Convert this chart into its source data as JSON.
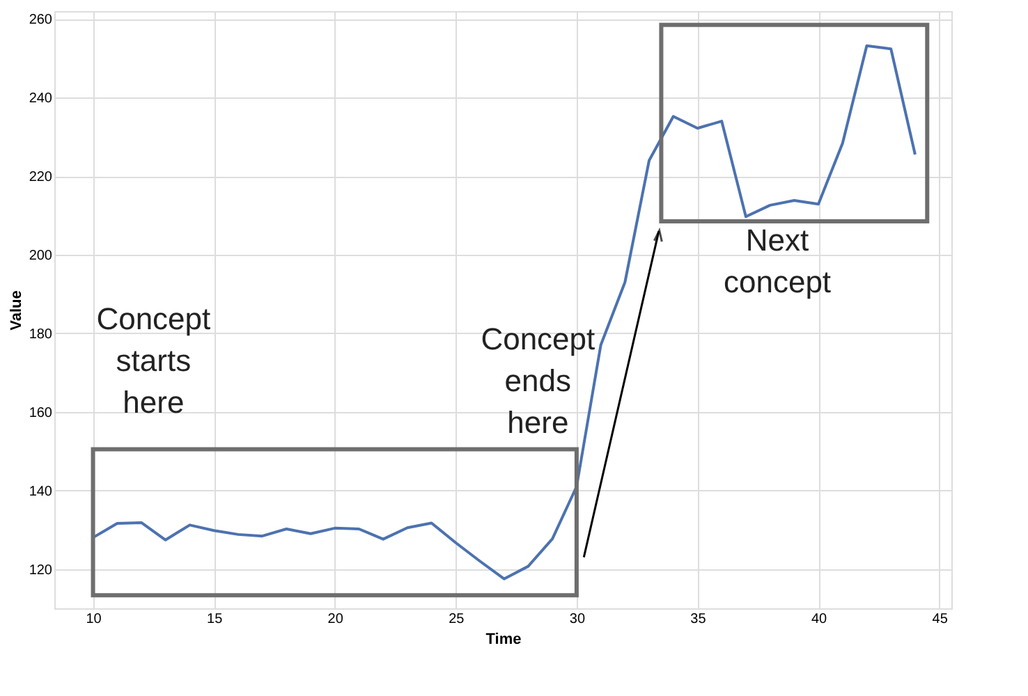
{
  "chart_data": {
    "type": "line",
    "xlabel": "Time",
    "ylabel": "Value",
    "x": [
      10,
      11,
      12,
      13,
      14,
      15,
      16,
      17,
      18,
      19,
      20,
      21,
      22,
      23,
      24,
      25,
      26,
      27,
      28,
      29,
      30,
      31,
      32,
      33,
      34,
      35,
      36,
      37,
      38,
      39,
      40,
      41,
      42,
      43,
      44
    ],
    "series": [
      {
        "color": "#4c72b0",
        "values": [
          128,
          131.6,
          131.8,
          127.4,
          131.2,
          129.8,
          128.8,
          128.4,
          130.2,
          129,
          130.4,
          130.2,
          127.6,
          130.5,
          131.7,
          126.7,
          122,
          117.5,
          120.7,
          127.7,
          141,
          177,
          193,
          224,
          235.2,
          232.2,
          234,
          209.7,
          212.6,
          213.8,
          212.9,
          228.4,
          253.2,
          252.4,
          225.5
        ]
      }
    ],
    "xlim": [
      8.4,
      45.5
    ],
    "xticks": [
      10,
      15,
      20,
      25,
      30,
      35,
      40,
      45
    ],
    "ylim": [
      110,
      262
    ],
    "yticks": [
      120,
      140,
      160,
      180,
      200,
      220,
      240,
      260
    ],
    "grid": true,
    "line_style": "solid",
    "marker": "none",
    "annotations": [
      "Concept starts here",
      "Concept ends here",
      "Next concept"
    ]
  }
}
